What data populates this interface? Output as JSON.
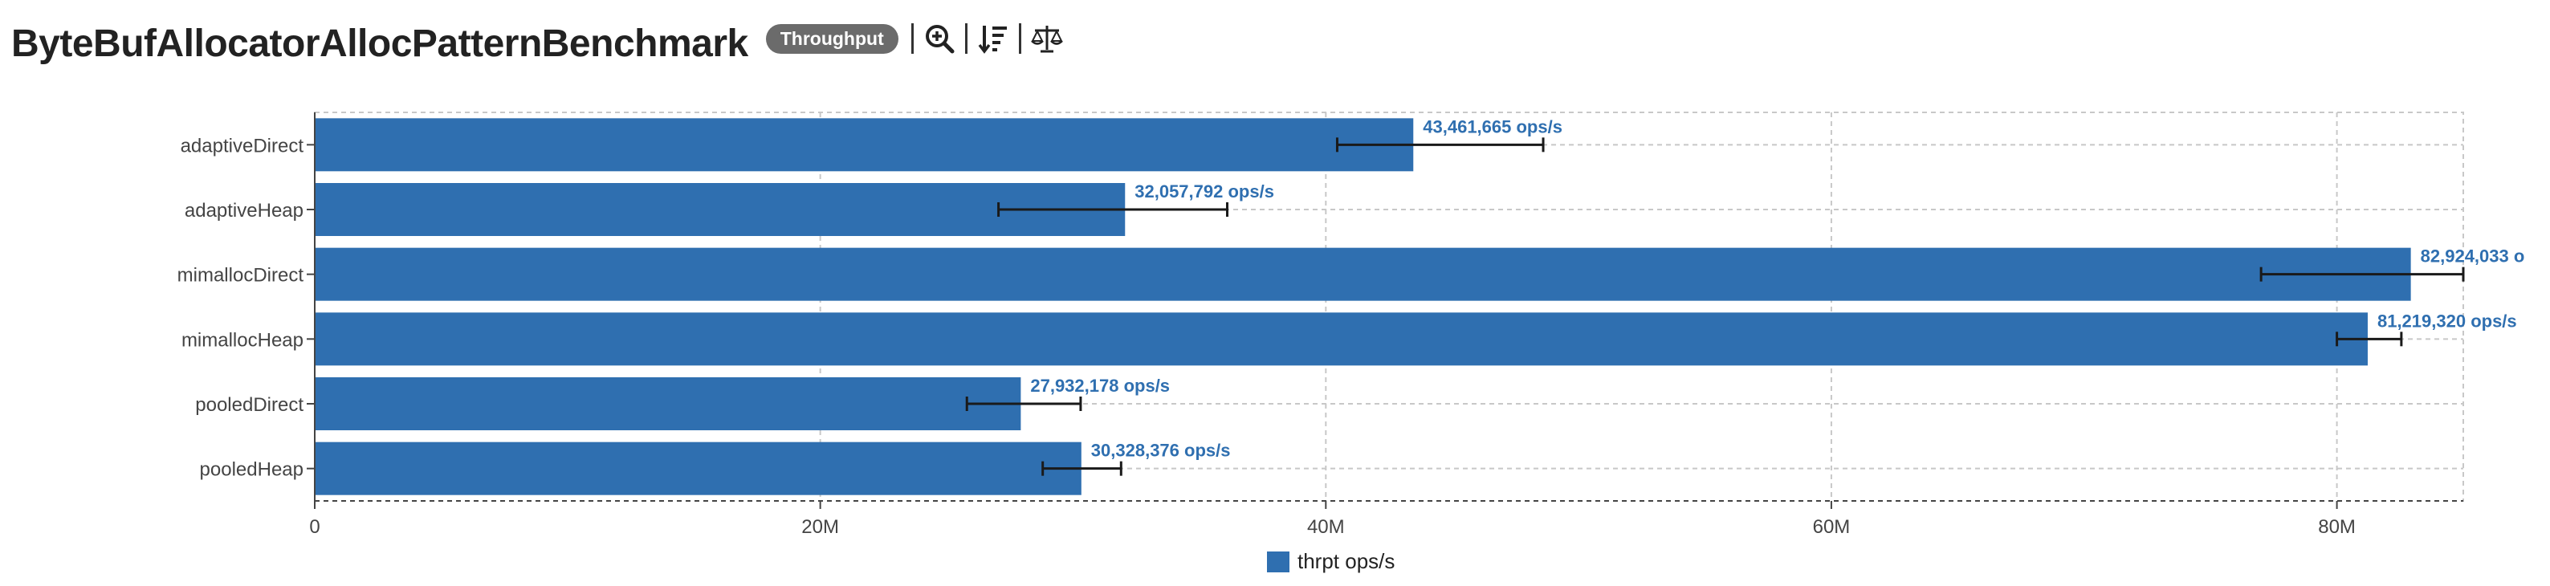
{
  "header": {
    "title": "ByteBufAllocatorAllocPatternBenchmark",
    "badge": "Throughput",
    "tools": [
      {
        "name": "zoom-in-icon"
      },
      {
        "name": "sort-descending-icon"
      },
      {
        "name": "balance-scale-icon"
      }
    ]
  },
  "colors": {
    "bar": "#2f6fb0",
    "label": "#2f6fb0",
    "error": "#1a1a1a",
    "grid": "#c8c8c8"
  },
  "chart_data": {
    "type": "bar",
    "orientation": "horizontal",
    "categories": [
      "adaptiveDirect",
      "adaptiveHeap",
      "mimallocDirect",
      "mimallocHeap",
      "pooledDirect",
      "pooledHeap"
    ],
    "series": [
      {
        "name": "thrpt ops/s",
        "values": [
          43461665,
          32057792,
          82924033,
          81219320,
          27932178,
          30328376
        ],
        "error_low": [
          40450000,
          27050000,
          77000000,
          80000000,
          25800000,
          28800000
        ],
        "error_high": [
          48600000,
          36100000,
          85000000,
          82550000,
          30300000,
          31900000
        ],
        "labels": [
          "43,461,665 ops/s",
          "32,057,792 ops/s",
          "82,924,033 o",
          "81,219,320 ops/s",
          "27,932,178 ops/s",
          "30,328,376 ops/s"
        ]
      }
    ],
    "xlim": [
      0,
      85000000
    ],
    "xticks": [
      0,
      20000000,
      40000000,
      60000000,
      80000000
    ],
    "xtick_labels": [
      "0",
      "20M",
      "40M",
      "60M",
      "80M"
    ],
    "grid": true,
    "legend": "bottom-center"
  }
}
